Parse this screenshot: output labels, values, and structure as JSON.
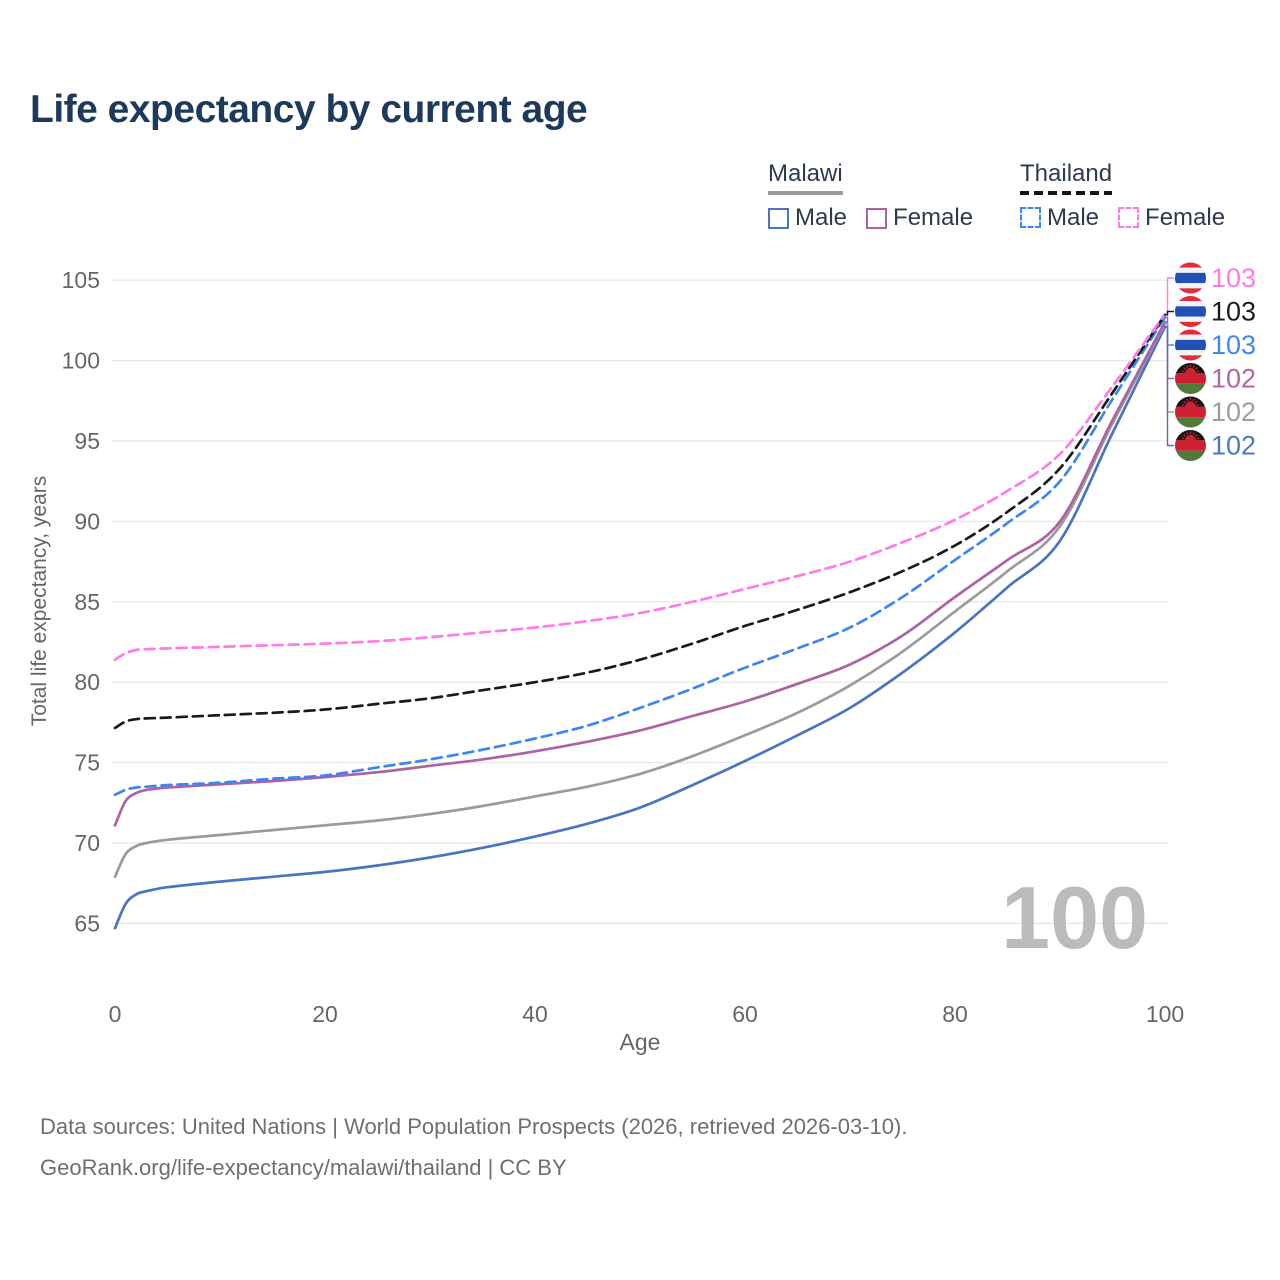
{
  "title": "Life expectancy by current age",
  "legend": {
    "groups": [
      {
        "label": "Malawi",
        "line_style": "solid",
        "underline_color": "#9a9a9a",
        "items": [
          {
            "label": "Male",
            "series": "malawi_male"
          },
          {
            "label": "Female",
            "series": "malawi_female"
          }
        ]
      },
      {
        "label": "Thailand",
        "line_style": "dashed",
        "underline_color": "#151515",
        "items": [
          {
            "label": "Male",
            "series": "thailand_male"
          },
          {
            "label": "Female",
            "series": "thailand_female"
          }
        ]
      }
    ]
  },
  "current_age_watermark": "100",
  "footer": {
    "line1": "Data sources: United Nations | World Population Prospects (2026, retrieved 2026-03-10).",
    "line2": "GeoRank.org/life-expectancy/malawi/thailand | CC BY"
  },
  "flag_colors": {
    "thailand": {
      "red": "#e02d3c",
      "white": "#f2f3f5",
      "blue": "#2350b4"
    },
    "malawi": {
      "black": "#151515",
      "red": "#cf1f30",
      "green": "#517a3a"
    }
  },
  "chart_data": {
    "type": "line",
    "title": "Life expectancy by current age",
    "xlabel": "Age",
    "ylabel": "Total life expectancy, years",
    "xlim": [
      0,
      100
    ],
    "ylim": [
      64,
      105
    ],
    "x_ticks": [
      0,
      20,
      40,
      60,
      80,
      100
    ],
    "y_ticks": [
      65,
      70,
      75,
      80,
      85,
      90,
      95,
      100,
      105
    ],
    "grid": true,
    "legend_position": "top-right",
    "series": [
      {
        "id": "thailand_female",
        "name": "Thailand Female",
        "country": "Thailand",
        "sex": "Female",
        "color": "#ff7ce6",
        "dashed": true,
        "flag": "thailand",
        "end_label": "103",
        "end_label_color": "#ff7ce4",
        "points": [
          [
            0,
            81.4
          ],
          [
            1,
            81.8
          ],
          [
            2,
            82.0
          ],
          [
            3,
            82.05
          ],
          [
            5,
            82.1
          ],
          [
            10,
            82.2
          ],
          [
            15,
            82.3
          ],
          [
            20,
            82.4
          ],
          [
            25,
            82.55
          ],
          [
            30,
            82.8
          ],
          [
            35,
            83.1
          ],
          [
            40,
            83.4
          ],
          [
            45,
            83.8
          ],
          [
            50,
            84.3
          ],
          [
            55,
            85.0
          ],
          [
            60,
            85.8
          ],
          [
            65,
            86.6
          ],
          [
            70,
            87.5
          ],
          [
            75,
            88.7
          ],
          [
            80,
            90.1
          ],
          [
            85,
            91.9
          ],
          [
            90,
            94.2
          ],
          [
            95,
            98.4
          ],
          [
            100,
            102.9
          ]
        ]
      },
      {
        "id": "thailand_all",
        "name": "Thailand",
        "country": "Thailand",
        "sex": "Both",
        "color": "#1a1a1a",
        "dashed": true,
        "flag": "thailand",
        "end_label": "103",
        "end_label_color": "#1c1c1c",
        "points": [
          [
            0,
            77.15
          ],
          [
            1,
            77.55
          ],
          [
            2,
            77.7
          ],
          [
            3,
            77.75
          ],
          [
            5,
            77.8
          ],
          [
            10,
            77.95
          ],
          [
            15,
            78.1
          ],
          [
            20,
            78.3
          ],
          [
            25,
            78.65
          ],
          [
            30,
            79.0
          ],
          [
            35,
            79.5
          ],
          [
            40,
            80.0
          ],
          [
            45,
            80.6
          ],
          [
            50,
            81.4
          ],
          [
            55,
            82.4
          ],
          [
            60,
            83.5
          ],
          [
            65,
            84.5
          ],
          [
            70,
            85.6
          ],
          [
            75,
            86.9
          ],
          [
            80,
            88.5
          ],
          [
            85,
            90.6
          ],
          [
            90,
            93.3
          ],
          [
            95,
            98.0
          ],
          [
            100,
            102.85
          ]
        ]
      },
      {
        "id": "thailand_male",
        "name": "Thailand Male",
        "country": "Thailand",
        "sex": "Male",
        "color": "#3c86f2",
        "dashed": true,
        "flag": "thailand",
        "end_label": "103",
        "end_label_color": "#3f88f2",
        "points": [
          [
            0,
            73.0
          ],
          [
            1,
            73.3
          ],
          [
            2,
            73.45
          ],
          [
            3,
            73.5
          ],
          [
            5,
            73.6
          ],
          [
            10,
            73.75
          ],
          [
            15,
            74.0
          ],
          [
            20,
            74.2
          ],
          [
            25,
            74.7
          ],
          [
            30,
            75.2
          ],
          [
            35,
            75.8
          ],
          [
            40,
            76.5
          ],
          [
            45,
            77.3
          ],
          [
            50,
            78.4
          ],
          [
            55,
            79.6
          ],
          [
            60,
            80.9
          ],
          [
            65,
            82.1
          ],
          [
            70,
            83.4
          ],
          [
            75,
            85.3
          ],
          [
            80,
            87.6
          ],
          [
            85,
            89.9
          ],
          [
            90,
            92.5
          ],
          [
            95,
            97.6
          ],
          [
            100,
            102.7
          ]
        ]
      },
      {
        "id": "malawi_female",
        "name": "Malawi Female",
        "country": "Malawi",
        "sex": "Female",
        "color": "#ae62a4",
        "dashed": false,
        "flag": "malawi",
        "end_label": "102",
        "end_label_color": "#b0679f",
        "points": [
          [
            0,
            71.1
          ],
          [
            1,
            72.6
          ],
          [
            2,
            73.1
          ],
          [
            3,
            73.3
          ],
          [
            5,
            73.45
          ],
          [
            10,
            73.65
          ],
          [
            15,
            73.85
          ],
          [
            20,
            74.1
          ],
          [
            25,
            74.4
          ],
          [
            30,
            74.8
          ],
          [
            35,
            75.2
          ],
          [
            40,
            75.7
          ],
          [
            45,
            76.3
          ],
          [
            50,
            77.0
          ],
          [
            55,
            77.9
          ],
          [
            60,
            78.8
          ],
          [
            65,
            79.9
          ],
          [
            70,
            81.1
          ],
          [
            75,
            82.9
          ],
          [
            80,
            85.3
          ],
          [
            85,
            87.6
          ],
          [
            90,
            90.0
          ],
          [
            95,
            96.3
          ],
          [
            100,
            102.4
          ]
        ]
      },
      {
        "id": "malawi_all",
        "name": "Malawi",
        "country": "Malawi",
        "sex": "Both",
        "color": "#9b9b9b",
        "dashed": false,
        "flag": "malawi",
        "end_label": "102",
        "end_label_color": "#9e9e9e",
        "points": [
          [
            0,
            67.9
          ],
          [
            1,
            69.3
          ],
          [
            2,
            69.8
          ],
          [
            3,
            70.0
          ],
          [
            5,
            70.2
          ],
          [
            10,
            70.5
          ],
          [
            15,
            70.8
          ],
          [
            20,
            71.1
          ],
          [
            25,
            71.4
          ],
          [
            30,
            71.8
          ],
          [
            35,
            72.3
          ],
          [
            40,
            72.9
          ],
          [
            45,
            73.5
          ],
          [
            50,
            74.3
          ],
          [
            55,
            75.4
          ],
          [
            60,
            76.7
          ],
          [
            65,
            78.1
          ],
          [
            70,
            79.8
          ],
          [
            75,
            81.9
          ],
          [
            80,
            84.4
          ],
          [
            85,
            86.9
          ],
          [
            90,
            89.7
          ],
          [
            95,
            96.1
          ],
          [
            100,
            102.3
          ]
        ]
      },
      {
        "id": "malawi_male",
        "name": "Malawi Male",
        "country": "Malawi",
        "sex": "Male",
        "color": "#4a74c0",
        "dashed": false,
        "flag": "malawi",
        "end_label": "102",
        "end_label_color": "#4b79c2",
        "points": [
          [
            0,
            64.7
          ],
          [
            1,
            66.2
          ],
          [
            2,
            66.8
          ],
          [
            3,
            67.0
          ],
          [
            5,
            67.25
          ],
          [
            10,
            67.6
          ],
          [
            15,
            67.9
          ],
          [
            20,
            68.2
          ],
          [
            25,
            68.6
          ],
          [
            30,
            69.1
          ],
          [
            35,
            69.7
          ],
          [
            40,
            70.4
          ],
          [
            45,
            71.2
          ],
          [
            50,
            72.2
          ],
          [
            55,
            73.6
          ],
          [
            60,
            75.1
          ],
          [
            65,
            76.7
          ],
          [
            70,
            78.4
          ],
          [
            75,
            80.6
          ],
          [
            80,
            83.1
          ],
          [
            85,
            85.9
          ],
          [
            90,
            88.8
          ],
          [
            95,
            95.5
          ],
          [
            100,
            102.1
          ]
        ]
      }
    ]
  }
}
